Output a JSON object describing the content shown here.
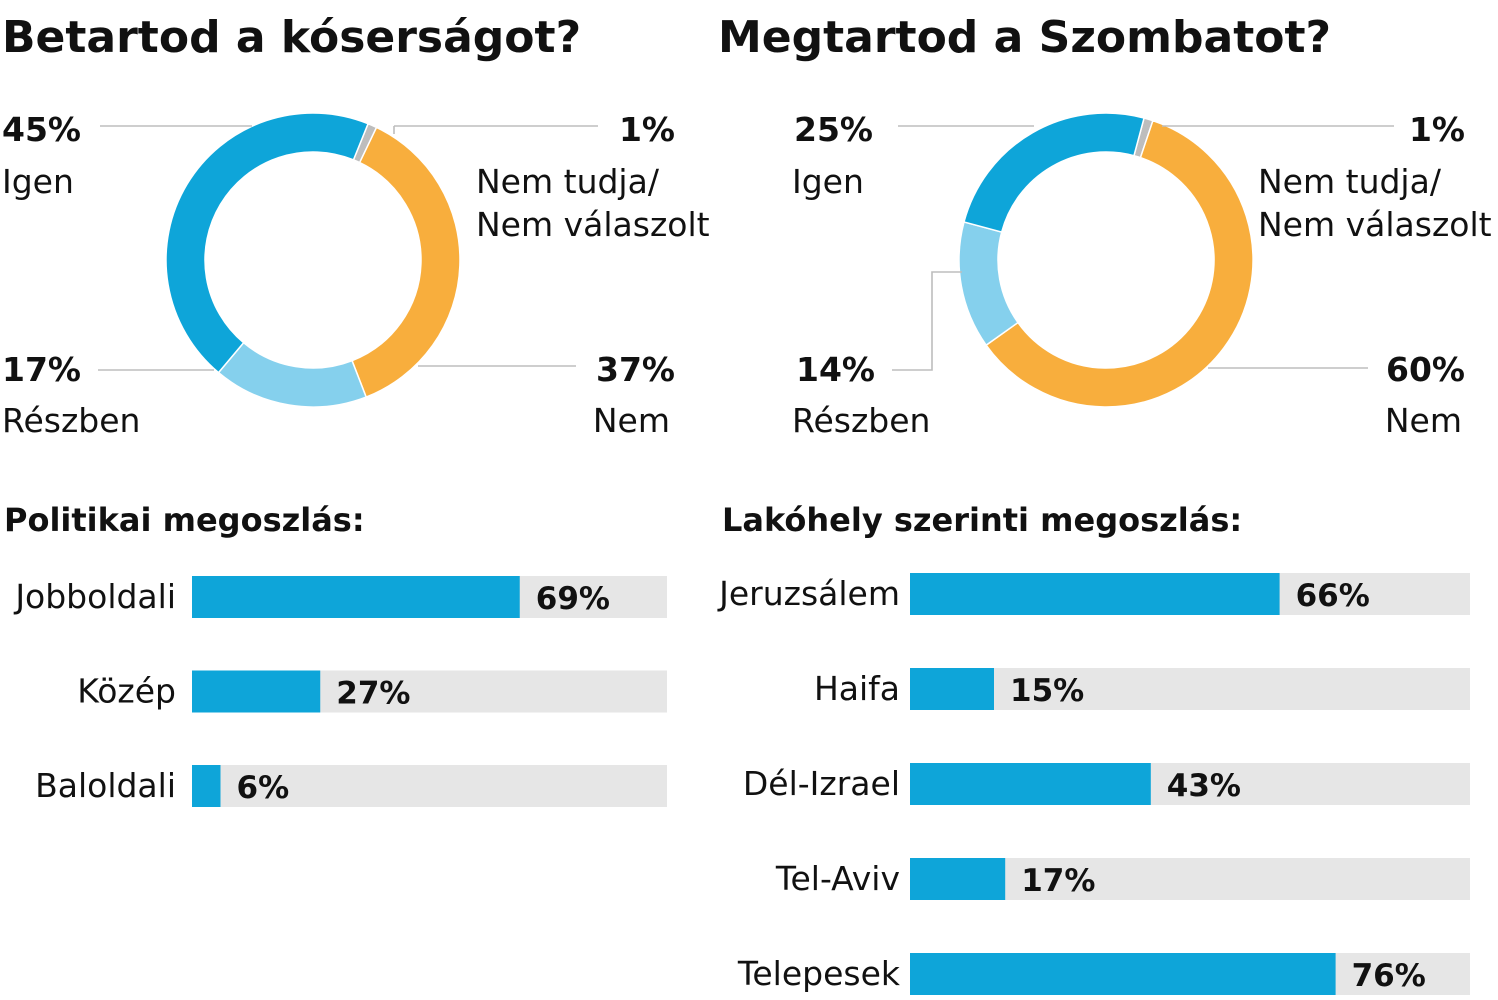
{
  "chart_data": [
    {
      "type": "pie",
      "title": "Betartod a kóserságot?",
      "slices": [
        {
          "label": "Nem tudja/\nNem válaszolt",
          "value": 1,
          "value_label": "1%",
          "color": "#bdbdbd"
        },
        {
          "label": "Nem",
          "value": 37,
          "value_label": "37%",
          "color": "#f8ae3d"
        },
        {
          "label": "Részben",
          "value": 17,
          "value_label": "17%",
          "color": "#85d0ed"
        },
        {
          "label": "Igen",
          "value": 45,
          "value_label": "45%",
          "color": "#0ea5d9"
        }
      ]
    },
    {
      "type": "pie",
      "title": "Megtartod a Szombatot?",
      "slices": [
        {
          "label": "Nem tudja/\nNem válaszolt",
          "value": 1,
          "value_label": "1%",
          "color": "#bdbdbd"
        },
        {
          "label": "Nem",
          "value": 60,
          "value_label": "60%",
          "color": "#f8ae3d"
        },
        {
          "label": "Részben",
          "value": 14,
          "value_label": "14%",
          "color": "#85d0ed"
        },
        {
          "label": "Igen",
          "value": 25,
          "value_label": "25%",
          "color": "#0ea5d9"
        }
      ]
    },
    {
      "type": "bar",
      "orientation": "horizontal",
      "title": "Politikai megoszlás:",
      "categories": [
        "Jobboldali",
        "Közép",
        "Baloldali"
      ],
      "values": [
        69,
        27,
        6
      ],
      "value_labels": [
        "69%",
        "27%",
        "6%"
      ],
      "xlim": [
        0,
        100
      ],
      "bar_color": "#0ea5d9",
      "track_color": "#e6e6e6"
    },
    {
      "type": "bar",
      "orientation": "horizontal",
      "title": "Lakóhely szerinti megoszlás:",
      "categories": [
        "Jeruzsálem",
        "Haifa",
        "Dél-Izrael",
        "Tel-Aviv",
        "Telepesek"
      ],
      "values": [
        66,
        15,
        43,
        17,
        76
      ],
      "value_labels": [
        "66%",
        "15%",
        "43%",
        "17%",
        "76%"
      ],
      "xlim": [
        0,
        100
      ],
      "bar_color": "#0ea5d9",
      "track_color": "#e6e6e6"
    }
  ]
}
